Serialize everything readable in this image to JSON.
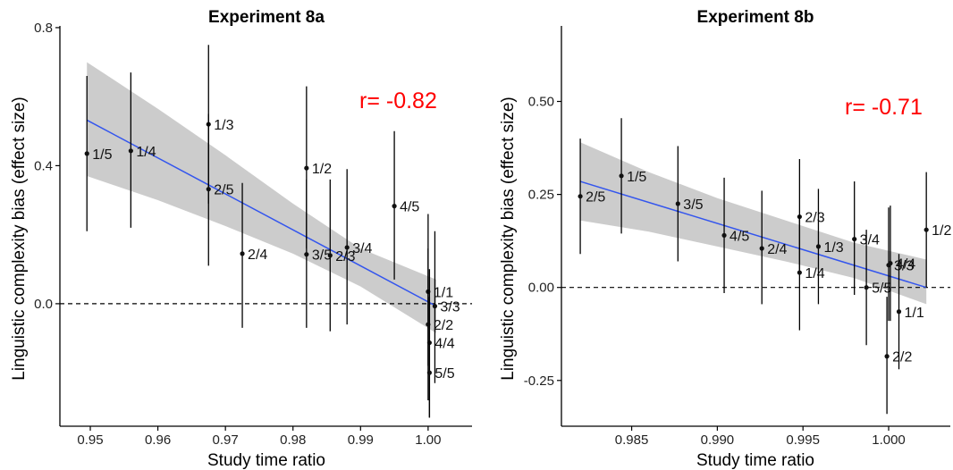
{
  "colors": {
    "fit_line": "#3355ee",
    "band": "#cccccc",
    "annotation": "#ff0000",
    "points": "#111111"
  },
  "chart_data": [
    {
      "type": "scatter",
      "title": "Experiment 8a",
      "xlabel": "Study time ratio",
      "ylabel": "Linguistic complexity bias (effect size)",
      "annotation": "r= -0.82",
      "xlim": [
        0.9455,
        1.0065
      ],
      "ylim": [
        -0.355,
        0.805
      ],
      "xticks": [
        0.95,
        0.96,
        0.97,
        0.98,
        0.99,
        1.0
      ],
      "xtick_labels": [
        "0.95",
        "0.96",
        "0.97",
        "0.98",
        "0.99",
        "1.00"
      ],
      "yticks": [
        0.0,
        0.4,
        0.8
      ],
      "ytick_labels": [
        "0.0",
        "0.4",
        "0.8"
      ],
      "reference_line_y": 0,
      "grid": false,
      "fit": {
        "x": [
          0.9495,
          1.0012
        ],
        "y": [
          0.532,
          -0.007
        ]
      },
      "band": {
        "x": [
          0.9495,
          0.96,
          0.97,
          0.98,
          0.99,
          1.0012
        ],
        "lower": [
          0.37,
          0.3,
          0.225,
          0.145,
          0.05,
          -0.085
        ],
        "upper": [
          0.7,
          0.565,
          0.43,
          0.29,
          0.16,
          0.07
        ]
      },
      "points": [
        {
          "label": "1/5",
          "x": 0.9495,
          "y": 0.435,
          "lo": 0.21,
          "hi": 0.66
        },
        {
          "label": "1/4",
          "x": 0.956,
          "y": 0.443,
          "lo": 0.22,
          "hi": 0.67
        },
        {
          "label": "1/3",
          "x": 0.9675,
          "y": 0.52,
          "lo": 0.29,
          "hi": 0.75
        },
        {
          "label": "2/5",
          "x": 0.9675,
          "y": 0.332,
          "lo": 0.11,
          "hi": 0.55
        },
        {
          "label": "2/4",
          "x": 0.9725,
          "y": 0.145,
          "lo": -0.07,
          "hi": 0.35
        },
        {
          "label": "1/2",
          "x": 0.982,
          "y": 0.393,
          "lo": 0.16,
          "hi": 0.63
        },
        {
          "label": "3/5",
          "x": 0.982,
          "y": 0.143,
          "lo": -0.07,
          "hi": 0.36
        },
        {
          "label": "2/3",
          "x": 0.9855,
          "y": 0.14,
          "lo": -0.08,
          "hi": 0.36
        },
        {
          "label": "3/4",
          "x": 0.988,
          "y": 0.163,
          "lo": -0.06,
          "hi": 0.39
        },
        {
          "label": "4/5",
          "x": 0.995,
          "y": 0.283,
          "lo": 0.07,
          "hi": 0.5
        },
        {
          "label": "1/1",
          "x": 1.0,
          "y": 0.035,
          "lo": -0.18,
          "hi": 0.26
        },
        {
          "label": "3/3",
          "x": 1.001,
          "y": -0.007,
          "lo": -0.23,
          "hi": 0.21
        },
        {
          "label": "2/2",
          "x": 1.0,
          "y": -0.06,
          "lo": -0.28,
          "hi": 0.16
        },
        {
          "label": "4/4",
          "x": 1.0002,
          "y": -0.113,
          "lo": -0.33,
          "hi": 0.1
        },
        {
          "label": "5/5",
          "x": 1.0002,
          "y": -0.2,
          "lo": -0.33,
          "hi": 0.02
        }
      ]
    },
    {
      "type": "scatter",
      "title": "Experiment 8b",
      "xlabel": "Study time ratio",
      "ylabel": "Linguistic complexity bias (effect size)",
      "annotation": "r= -0.71",
      "xlim": [
        0.9809,
        1.0036
      ],
      "ylim": [
        -0.373,
        0.703
      ],
      "xticks": [
        0.985,
        0.99,
        0.995,
        1.0
      ],
      "xtick_labels": [
        "0.985",
        "0.990",
        "0.995",
        "1.000"
      ],
      "yticks": [
        -0.25,
        0.0,
        0.25,
        0.5
      ],
      "ytick_labels": [
        "-0.25",
        "0.00",
        "0.25",
        "0.50"
      ],
      "reference_line_y": 0,
      "grid": false,
      "fit": {
        "x": [
          0.982,
          1.0022
        ],
        "y": [
          0.285,
          0.0
        ]
      },
      "band": {
        "x": [
          0.982,
          0.986,
          0.99,
          0.994,
          0.998,
          1.0022
        ],
        "lower": [
          0.18,
          0.15,
          0.11,
          0.07,
          0.025,
          -0.045
        ],
        "upper": [
          0.39,
          0.31,
          0.24,
          0.18,
          0.12,
          0.075
        ]
      },
      "points": [
        {
          "label": "2/5",
          "x": 0.982,
          "y": 0.245,
          "lo": 0.09,
          "hi": 0.4
        },
        {
          "label": "1/5",
          "x": 0.9844,
          "y": 0.3,
          "lo": 0.145,
          "hi": 0.455
        },
        {
          "label": "3/5",
          "x": 0.9877,
          "y": 0.225,
          "lo": 0.07,
          "hi": 0.38
        },
        {
          "label": "4/5",
          "x": 0.9904,
          "y": 0.14,
          "lo": -0.015,
          "hi": 0.295
        },
        {
          "label": "2/4",
          "x": 0.9926,
          "y": 0.105,
          "lo": -0.045,
          "hi": 0.26
        },
        {
          "label": "2/3",
          "x": 0.9948,
          "y": 0.19,
          "lo": 0.035,
          "hi": 0.345
        },
        {
          "label": "1/4",
          "x": 0.9948,
          "y": 0.04,
          "lo": -0.115,
          "hi": 0.195
        },
        {
          "label": "1/3",
          "x": 0.9959,
          "y": 0.11,
          "lo": -0.045,
          "hi": 0.265
        },
        {
          "label": "3/4",
          "x": 0.998,
          "y": 0.13,
          "lo": -0.02,
          "hi": 0.285
        },
        {
          "label": "5/5",
          "x": 0.9987,
          "y": 0.0,
          "lo": -0.155,
          "hi": 0.155
        },
        {
          "label": "2/2",
          "x": 0.9999,
          "y": -0.185,
          "lo": -0.34,
          "hi": -0.025
        },
        {
          "label": "3/3",
          "x": 1.0,
          "y": 0.06,
          "lo": -0.09,
          "hi": 0.215
        },
        {
          "label": "4/4",
          "x": 1.0001,
          "y": 0.065,
          "lo": -0.09,
          "hi": 0.22
        },
        {
          "label": "1/1",
          "x": 1.0006,
          "y": -0.065,
          "lo": -0.22,
          "hi": 0.09
        },
        {
          "label": "1/2",
          "x": 1.0022,
          "y": 0.155,
          "lo": 0.0,
          "hi": 0.31
        }
      ]
    }
  ]
}
